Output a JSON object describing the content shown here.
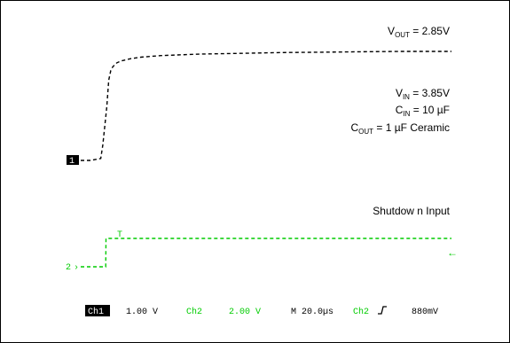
{
  "colors": {
    "ch1": "#000000",
    "ch2": "#00cc00",
    "background": "#ffffff",
    "text": "#000000"
  },
  "annotations": {
    "vout": {
      "base": "V",
      "sub": "OUT",
      "rest": " = 2.85V"
    },
    "vin": {
      "base": "V",
      "sub": "IN",
      "rest": " = 3.85V"
    },
    "cin": {
      "base": "C",
      "sub": "IN",
      "rest": " = 10 µF"
    },
    "cout": {
      "base": "C",
      "sub": "OUT",
      "rest": " = 1 µF Ceramic"
    },
    "shutdown": "Shutdow n Input"
  },
  "markers": {
    "ch1": "1",
    "ch2": "2",
    "ch2_arrow": "←",
    "trigger_arrow": "T"
  },
  "status": {
    "ch1_name": "Ch1",
    "ch1_scale": "1.00 V",
    "ch2_name": "Ch2",
    "ch2_scale": "2.00 V",
    "timebase": "M 20.0µs",
    "trigger_channel": "Ch2",
    "trigger_level": "880mV"
  },
  "chart_data": {
    "type": "line",
    "x_unit": "µs",
    "series": [
      {
        "channel": "Ch1",
        "x": [
          0,
          5,
          10,
          11,
          13,
          14,
          15,
          16,
          18,
          20,
          25,
          30,
          40,
          60,
          80,
          100,
          120,
          140,
          160,
          180,
          185
        ],
        "y": [
          0,
          0,
          0.05,
          0.4,
          1.4,
          2.1,
          2.35,
          2.45,
          2.55,
          2.6,
          2.66,
          2.7,
          2.74,
          2.78,
          2.8,
          2.82,
          2.83,
          2.84,
          2.85,
          2.85,
          2.85
        ]
      },
      {
        "channel": "Ch2",
        "x": [
          0,
          12.5,
          12.6,
          185
        ],
        "y": [
          0,
          0,
          3.85,
          3.85
        ]
      }
    ]
  }
}
